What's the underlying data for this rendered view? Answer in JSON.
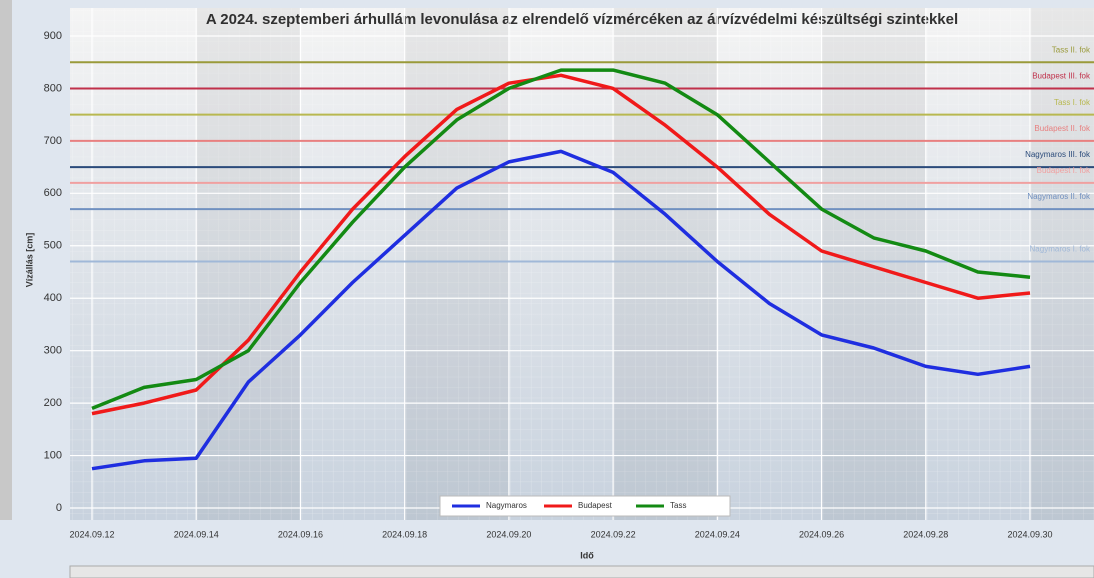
{
  "chart_data": {
    "type": "line",
    "title": "A 2024. szeptemberi árhullám levonulása az elrendelő vízmércéken az árvízvédelmi készültségi szintekkel",
    "y_label": "Vízállás [cm]",
    "x_label": "Idő",
    "categories": [
      "2024.09.12",
      "2024.09.13",
      "2024.09.14",
      "2024.09.15",
      "2024.09.16",
      "2024.09.17",
      "2024.09.18",
      "2024.09.19",
      "2024.09.20",
      "2024.09.21",
      "2024.09.22",
      "2024.09.23",
      "2024.09.24",
      "2024.09.25",
      "2024.09.26",
      "2024.09.27",
      "2024.09.28",
      "2024.09.29",
      "2024.09.30"
    ],
    "xticks": [
      "2024.09.12",
      "2024.09.14",
      "2024.09.16",
      "2024.09.18",
      "2024.09.20",
      "2024.09.22",
      "2024.09.24",
      "2024.09.26",
      "2024.09.28",
      "2024.09.30"
    ],
    "ylim": [
      0,
      900
    ],
    "yticks": [
      0,
      100,
      200,
      300,
      400,
      500,
      600,
      700,
      800,
      900
    ],
    "grid": true,
    "series": [
      {
        "name": "Nagymaros",
        "color": "#1f2ee0",
        "values": [
          75,
          90,
          95,
          240,
          330,
          430,
          520,
          610,
          660,
          680,
          640,
          560,
          470,
          390,
          330,
          305,
          270,
          255,
          270
        ]
      },
      {
        "name": "Budapest",
        "color": "#f01a1a",
        "values": [
          180,
          200,
          225,
          320,
          450,
          570,
          670,
          760,
          810,
          825,
          800,
          730,
          650,
          560,
          490,
          460,
          430,
          400,
          410
        ]
      },
      {
        "name": "Tass",
        "color": "#138a13",
        "values": [
          190,
          230,
          245,
          300,
          430,
          545,
          650,
          740,
          800,
          835,
          835,
          810,
          750,
          660,
          570,
          515,
          490,
          450,
          440
        ]
      }
    ],
    "thresholds": [
      {
        "label": "Tass II. fok",
        "value": 850,
        "color": "#9a9a3a"
      },
      {
        "label": "Budapest III. fok",
        "value": 800,
        "color": "#c0304a"
      },
      {
        "label": "Tass I. fok",
        "value": 750,
        "color": "#b8b850"
      },
      {
        "label": "Budapest II. fok",
        "value": 700,
        "color": "#e88080"
      },
      {
        "label": "Nagymaros III. fok",
        "value": 650,
        "color": "#2a4a7a"
      },
      {
        "label": "Budapest I. fok",
        "value": 620,
        "color": "#f0a0a0"
      },
      {
        "label": "Nagymaros II. fok",
        "value": 570,
        "color": "#7090c0"
      },
      {
        "label": "Nagymaros I. fok",
        "value": 470,
        "color": "#a0b8d8"
      }
    ]
  }
}
